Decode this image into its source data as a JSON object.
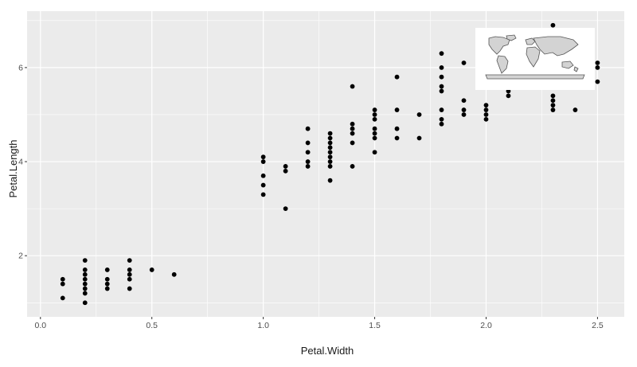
{
  "chart_data": {
    "type": "scatter",
    "xlabel": "Petal.Width",
    "ylabel": "Petal.Length",
    "xlim": [
      -0.06,
      2.62
    ],
    "ylim": [
      0.7,
      7.2
    ],
    "x_ticks": [
      0.0,
      0.5,
      1.0,
      1.5,
      2.0,
      2.5
    ],
    "x_tick_labels": [
      "0.0",
      "0.5",
      "1.0",
      "1.5",
      "2.0",
      "2.5"
    ],
    "y_ticks": [
      2,
      4,
      6
    ],
    "y_tick_labels": [
      "2",
      "4",
      "6"
    ],
    "grid": true,
    "panel_background": "#ebebeb",
    "grid_color": "#ffffff",
    "point_color": "#000000",
    "inset": {
      "type": "world-map",
      "background": "#ffffff",
      "land_color": "#d3d3d3",
      "border_color": "#555555"
    },
    "points": [
      [
        0.1,
        1.1
      ],
      [
        0.1,
        1.4
      ],
      [
        0.1,
        1.5
      ],
      [
        0.2,
        1.0
      ],
      [
        0.2,
        1.2
      ],
      [
        0.2,
        1.3
      ],
      [
        0.2,
        1.4
      ],
      [
        0.2,
        1.5
      ],
      [
        0.2,
        1.6
      ],
      [
        0.2,
        1.7
      ],
      [
        0.2,
        1.9
      ],
      [
        0.3,
        1.3
      ],
      [
        0.3,
        1.4
      ],
      [
        0.3,
        1.5
      ],
      [
        0.3,
        1.7
      ],
      [
        0.4,
        1.3
      ],
      [
        0.4,
        1.5
      ],
      [
        0.4,
        1.6
      ],
      [
        0.4,
        1.7
      ],
      [
        0.4,
        1.9
      ],
      [
        0.5,
        1.7
      ],
      [
        0.6,
        1.6
      ],
      [
        1.0,
        3.3
      ],
      [
        1.0,
        3.5
      ],
      [
        1.0,
        3.7
      ],
      [
        1.0,
        4.0
      ],
      [
        1.0,
        4.1
      ],
      [
        1.1,
        3.0
      ],
      [
        1.1,
        3.8
      ],
      [
        1.1,
        3.9
      ],
      [
        1.2,
        3.9
      ],
      [
        1.2,
        4.0
      ],
      [
        1.2,
        4.2
      ],
      [
        1.2,
        4.4
      ],
      [
        1.2,
        4.7
      ],
      [
        1.3,
        3.6
      ],
      [
        1.3,
        3.9
      ],
      [
        1.3,
        4.0
      ],
      [
        1.3,
        4.1
      ],
      [
        1.3,
        4.2
      ],
      [
        1.3,
        4.3
      ],
      [
        1.3,
        4.4
      ],
      [
        1.3,
        4.5
      ],
      [
        1.3,
        4.6
      ],
      [
        1.4,
        3.9
      ],
      [
        1.4,
        4.4
      ],
      [
        1.4,
        4.6
      ],
      [
        1.4,
        4.7
      ],
      [
        1.4,
        4.8
      ],
      [
        1.4,
        5.6
      ],
      [
        1.5,
        4.2
      ],
      [
        1.5,
        4.5
      ],
      [
        1.5,
        4.6
      ],
      [
        1.5,
        4.7
      ],
      [
        1.5,
        4.9
      ],
      [
        1.5,
        5.0
      ],
      [
        1.5,
        5.1
      ],
      [
        1.6,
        4.5
      ],
      [
        1.6,
        4.7
      ],
      [
        1.6,
        5.1
      ],
      [
        1.6,
        5.8
      ],
      [
        1.7,
        4.5
      ],
      [
        1.7,
        5.0
      ],
      [
        1.8,
        4.8
      ],
      [
        1.8,
        4.9
      ],
      [
        1.8,
        5.1
      ],
      [
        1.8,
        5.5
      ],
      [
        1.8,
        5.6
      ],
      [
        1.8,
        5.8
      ],
      [
        1.8,
        6.0
      ],
      [
        1.8,
        6.3
      ],
      [
        1.9,
        5.0
      ],
      [
        1.9,
        5.1
      ],
      [
        1.9,
        5.3
      ],
      [
        1.9,
        6.1
      ],
      [
        2.0,
        4.9
      ],
      [
        2.0,
        5.0
      ],
      [
        2.0,
        5.1
      ],
      [
        2.0,
        5.2
      ],
      [
        2.1,
        5.4
      ],
      [
        2.1,
        5.5
      ],
      [
        2.2,
        5.6
      ],
      [
        2.3,
        5.1
      ],
      [
        2.3,
        5.2
      ],
      [
        2.3,
        5.3
      ],
      [
        2.3,
        5.4
      ],
      [
        2.3,
        6.9
      ],
      [
        2.4,
        5.1
      ],
      [
        2.4,
        5.6
      ],
      [
        2.5,
        5.7
      ],
      [
        2.5,
        6.0
      ],
      [
        2.5,
        6.1
      ]
    ]
  }
}
